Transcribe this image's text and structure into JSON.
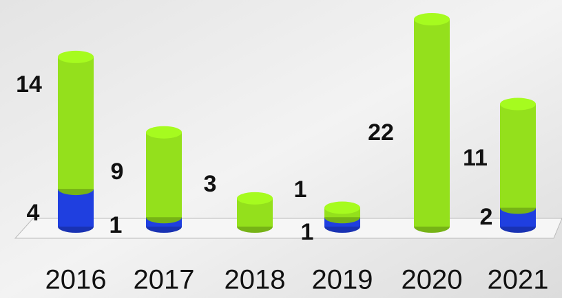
{
  "chart_data": {
    "type": "bar",
    "stacked": true,
    "categories": [
      "2016",
      "2017",
      "2018",
      "2019",
      "2020",
      "2021"
    ],
    "series": [
      {
        "color": "#1f3fe0",
        "values": [
          4,
          1,
          null,
          1,
          null,
          2
        ]
      },
      {
        "color": "#94e01c",
        "values": [
          14,
          9,
          3,
          1,
          22,
          11
        ]
      }
    ]
  }
}
